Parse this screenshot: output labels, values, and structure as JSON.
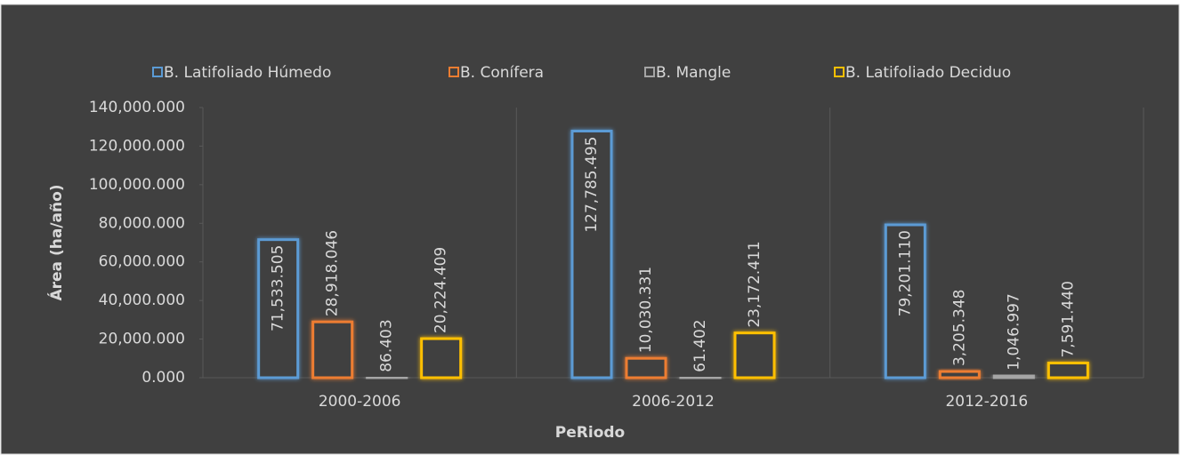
{
  "chart_data": {
    "type": "bar",
    "x_label": "PeRiodo",
    "y_label": "Área (ha/año)",
    "categories": [
      "2000-2006",
      "2006-2012",
      "2012-2016"
    ],
    "series": [
      {
        "name": "B. Latifoliado Húmedo",
        "color": "#5b9bd5",
        "values": [
          71533.505,
          127785.495,
          79201.11
        ],
        "value_labels": [
          "71,533.505",
          "127,785.495",
          "79,201.110"
        ]
      },
      {
        "name": "B. Conífera",
        "color": "#ed7d31",
        "values": [
          28918.046,
          10030.331,
          3205.348
        ],
        "value_labels": [
          "28,918.046",
          "10,030.331",
          "3,205.348"
        ]
      },
      {
        "name": "B. Mangle",
        "color": "#a5a5a5",
        "values": [
          86.403,
          61.402,
          1046.997
        ],
        "value_labels": [
          "86.403",
          "61.402",
          "1,046.997"
        ]
      },
      {
        "name": "B. Latifoliado Deciduo",
        "color": "#ffc000",
        "values": [
          20224.409,
          23172.411,
          7591.44
        ],
        "value_labels": [
          "20,224.409",
          "23,172.411",
          "7,591.440"
        ]
      }
    ],
    "ylim": [
      0,
      140000
    ],
    "yticks": [
      {
        "value": 0,
        "label": "0.000"
      },
      {
        "value": 20000,
        "label": "20,000.000"
      },
      {
        "value": 40000,
        "label": "40,000.000"
      },
      {
        "value": 60000,
        "label": "60,000.000"
      },
      {
        "value": 80000,
        "label": "80,000.000"
      },
      {
        "value": 100000,
        "label": "100,000.000"
      },
      {
        "value": 120000,
        "label": "120,000.000"
      },
      {
        "value": 140000,
        "label": "140,000.000"
      }
    ],
    "legend": "top"
  }
}
